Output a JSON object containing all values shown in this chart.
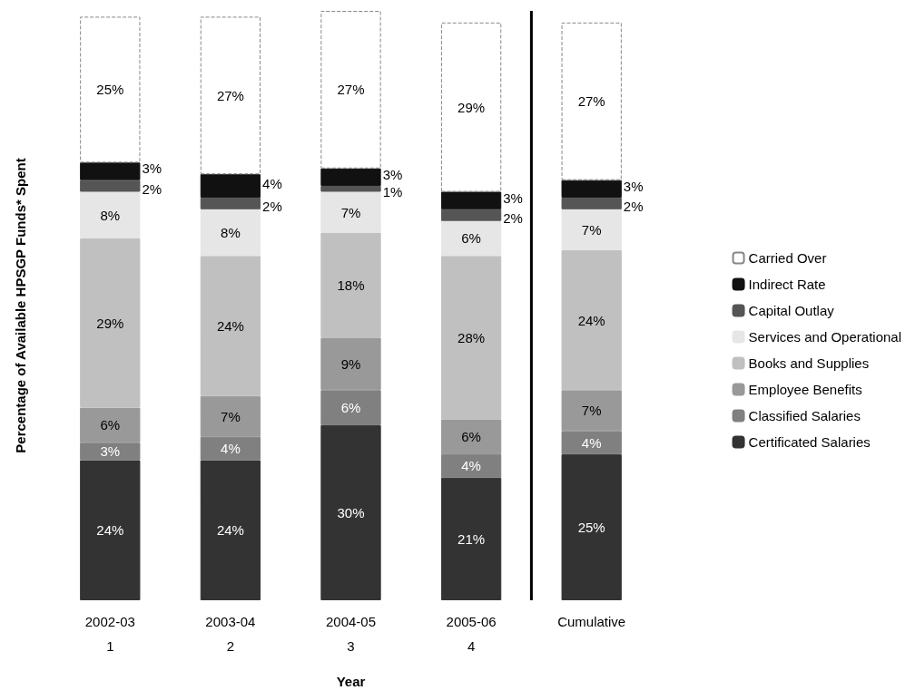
{
  "chart_data": {
    "type": "bar",
    "stacked": true,
    "legend": "right",
    "grid": false,
    "xlabel": "Year",
    "ylabel": "Percentage of Available HPSGP Funds* Spent",
    "categories": [
      "2002-03",
      "2003-04",
      "2004-05",
      "2005-06",
      "Cumulative"
    ],
    "annotations": [
      "1",
      "2",
      "3",
      "4"
    ],
    "series": [
      {
        "name": "Certificated Salaries",
        "color": "#333333",
        "values": [
          24,
          24,
          30,
          21,
          25
        ],
        "value_labels": [
          "24%",
          "24%",
          "30%",
          "21%",
          "25%"
        ]
      },
      {
        "name": "Classified Salaries",
        "color": "#808080",
        "values": [
          3,
          4,
          6,
          4,
          4
        ],
        "value_labels": [
          "3%",
          "4%",
          "6%",
          "4%",
          "4%"
        ]
      },
      {
        "name": "Employee Benefits",
        "color": "#999999",
        "values": [
          6,
          7,
          9,
          6,
          7
        ],
        "value_labels": [
          "6%",
          "7%",
          "9%",
          "6%",
          "7%"
        ]
      },
      {
        "name": "Books and Supplies",
        "color": "#c0c0c0",
        "values": [
          29,
          24,
          18,
          28,
          24
        ],
        "value_labels": [
          "29%",
          "24%",
          "18%",
          "28%",
          "24%"
        ]
      },
      {
        "name": "Services and Operational",
        "color": "#e6e6e6",
        "values": [
          8,
          8,
          7,
          6,
          7
        ],
        "value_labels": [
          "8%",
          "8%",
          "7%",
          "6%",
          "7%"
        ]
      },
      {
        "name": "Capital Outlay",
        "color": "#555555",
        "values": [
          2,
          2,
          1,
          2,
          2
        ],
        "value_labels": [
          "2%",
          "2%",
          "1%",
          "2%",
          "2%"
        ]
      },
      {
        "name": "Indirect Rate",
        "color": "#111111",
        "values": [
          3,
          4,
          3,
          3,
          3
        ],
        "value_labels": [
          "3%",
          "4%",
          "3%",
          "3%",
          "3%"
        ]
      },
      {
        "name": "Carried Over",
        "color": "#ffffff",
        "values": [
          25,
          27,
          27,
          29,
          27
        ],
        "value_labels": [
          "25%",
          "27%",
          "27%",
          "29%",
          "27%"
        ]
      }
    ]
  }
}
